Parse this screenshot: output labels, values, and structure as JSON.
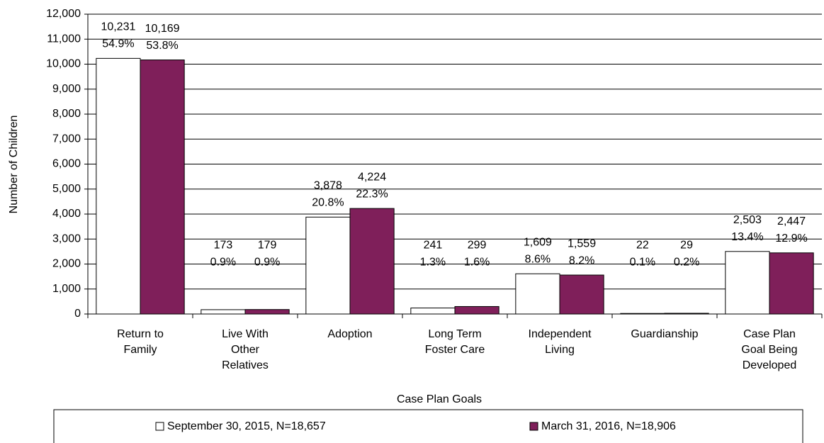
{
  "chart_data": {
    "type": "bar",
    "y_label": "Number of Children",
    "x_label": "Case Plan Goals",
    "categories": [
      "Return to Family",
      "Live With Other Relatives",
      "Adoption",
      "Long Term Foster Care",
      "Independent Living",
      "Guardianship",
      "Case Plan Goal Being Developed"
    ],
    "series": [
      {
        "name": "September 30, 2015, N=18,657",
        "color": "#ffffff",
        "values": [
          10231,
          173,
          3878,
          241,
          1609,
          22,
          2503
        ],
        "value_labels": [
          "10,231",
          "173",
          "3,878",
          "241",
          "1,609",
          "22",
          "2,503"
        ],
        "percent_labels": [
          "54.9%",
          "0.9%",
          "20.8%",
          "1.3%",
          "8.6%",
          "0.1%",
          "13.4%"
        ]
      },
      {
        "name": "March 31, 2016, N=18,906",
        "color": "#7f1f5a",
        "values": [
          10169,
          179,
          4224,
          299,
          1559,
          29,
          2447
        ],
        "value_labels": [
          "10,169",
          "179",
          "4,224",
          "299",
          "1,559",
          "29",
          "2,447"
        ],
        "percent_labels": [
          "53.8%",
          "0.9%",
          "22.3%",
          "1.6%",
          "8.2%",
          "0.2%",
          "12.9%"
        ]
      }
    ],
    "ylim": [
      0,
      12000
    ],
    "yticks": [
      0,
      {
        "value": 1000,
        "label": "1,000"
      },
      {
        "value": 2000,
        "label": "2,000"
      },
      {
        "value": 3000,
        "label": "3,000"
      },
      {
        "value": 4000,
        "label": "4,000"
      },
      {
        "value": 5000,
        "label": "5,000"
      },
      {
        "value": 6000,
        "label": "6,000"
      },
      {
        "value": 7000,
        "label": "7,000"
      },
      {
        "value": 8000,
        "label": "8,000"
      },
      {
        "value": 9000,
        "label": "9,000"
      },
      {
        "value": 10000,
        "label": "10,000"
      },
      {
        "value": 11000,
        "label": "11,000"
      },
      {
        "value": 12000,
        "label": "12,000"
      }
    ],
    "grid": true
  }
}
